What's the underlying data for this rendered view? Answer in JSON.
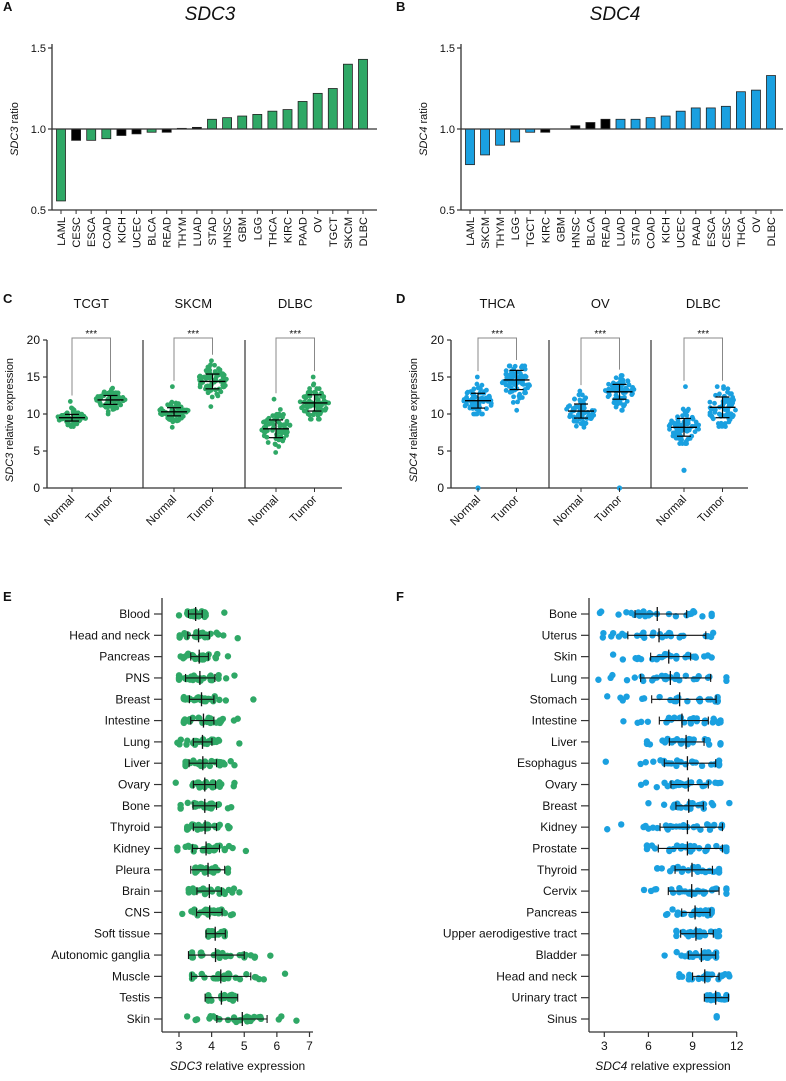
{
  "colors": {
    "sdc3": "#2fa866",
    "sdc4": "#1aa0e0",
    "nonsignificant": "#000000",
    "axis": "#333333",
    "bracket": "#888888"
  },
  "chart_data": [
    {
      "panel": "A",
      "type": "bar",
      "title": "SDC3",
      "ylabel_gene": "SDC3",
      "ylabel_suffix": " ratio",
      "ylim": [
        0.5,
        1.5
      ],
      "yticks": [
        "1.5",
        "1.0",
        "0.5"
      ],
      "baseline": 1.0,
      "categories": [
        "LAML",
        "CESC",
        "ESCA",
        "COAD",
        "KICH",
        "UCEC",
        "BLCA",
        "READ",
        "THYM",
        "LUAD",
        "STAD",
        "HNSC",
        "GBM",
        "LGG",
        "THCA",
        "KIRC",
        "PAAD",
        "OV",
        "TGCT",
        "SKCM",
        "DLBC"
      ],
      "values": [
        0.556,
        0.93,
        0.93,
        0.94,
        0.96,
        0.97,
        0.98,
        0.98,
        1.004,
        1.01,
        1.06,
        1.07,
        1.08,
        1.09,
        1.11,
        1.12,
        1.17,
        1.22,
        1.25,
        1.4,
        1.43
      ],
      "significant": [
        true,
        false,
        true,
        true,
        false,
        false,
        true,
        false,
        false,
        false,
        true,
        true,
        true,
        true,
        true,
        true,
        true,
        true,
        true,
        true,
        true
      ]
    },
    {
      "panel": "B",
      "type": "bar",
      "title": "SDC4",
      "ylabel_gene": "SDC4",
      "ylabel_suffix": " ratio",
      "ylim": [
        0.5,
        1.5
      ],
      "yticks": [
        "1.5",
        "1.0",
        "0.5"
      ],
      "baseline": 1.0,
      "categories": [
        "LAML",
        "SKCM",
        "THYM",
        "LGG",
        "TGCT",
        "KIRC",
        "GBM",
        "HNSC",
        "BLCA",
        "READ",
        "LUAD",
        "STAD",
        "COAD",
        "KICH",
        "UCEC",
        "PAAD",
        "ESCA",
        "CESC",
        "THCA",
        "OV",
        "DLBC"
      ],
      "values": [
        0.78,
        0.84,
        0.9,
        0.92,
        0.98,
        0.98,
        1.0,
        1.02,
        1.04,
        1.06,
        1.06,
        1.06,
        1.07,
        1.08,
        1.11,
        1.13,
        1.13,
        1.14,
        1.23,
        1.24,
        1.33
      ],
      "significant": [
        true,
        true,
        true,
        true,
        true,
        false,
        false,
        false,
        false,
        false,
        true,
        true,
        true,
        true,
        true,
        true,
        true,
        true,
        true,
        true,
        true
      ]
    },
    {
      "panel": "C",
      "type": "scatter",
      "ylabel_gene": "SDC3",
      "ylabel_suffix": " relative expression",
      "ylim": [
        0,
        20
      ],
      "yticks": [
        "20",
        "15",
        "10",
        "5",
        "0"
      ],
      "groups": [
        {
          "title": "TCGT",
          "significance": "***",
          "normal": {
            "label": "Normal",
            "mean": 9.5,
            "err": [
              9.05,
              9.95
            ],
            "min": 8.3,
            "max": 11.7,
            "outliers": []
          },
          "tumor": {
            "label": "Tumor",
            "mean": 11.9,
            "err": [
              11.3,
              12.5
            ],
            "min": 10.0,
            "max": 13.5,
            "outliers": []
          }
        },
        {
          "title": "SKCM",
          "significance": "***",
          "normal": {
            "label": "Normal",
            "mean": 10.3,
            "err": [
              9.75,
              10.85
            ],
            "min": 8.2,
            "max": 13.7,
            "outliers": []
          },
          "tumor": {
            "label": "Tumor",
            "mean": 14.4,
            "err": [
              13.4,
              15.4
            ],
            "min": 11.0,
            "max": 17.2,
            "outliers": []
          }
        },
        {
          "title": "DLBC",
          "significance": "***",
          "normal": {
            "label": "Normal",
            "mean": 8.0,
            "err": [
              6.8,
              9.2
            ],
            "min": 4.8,
            "max": 12.0,
            "outliers": []
          },
          "tumor": {
            "label": "Tumor",
            "mean": 11.5,
            "err": [
              10.4,
              12.6
            ],
            "min": 9.3,
            "max": 15.0,
            "outliers": []
          }
        }
      ]
    },
    {
      "panel": "D",
      "type": "scatter",
      "ylabel_gene": "SDC4",
      "ylabel_suffix": " relative expression",
      "ylim": [
        0,
        20
      ],
      "yticks": [
        "20",
        "15",
        "10",
        "5",
        "0"
      ],
      "groups": [
        {
          "title": "THCA",
          "significance": "***",
          "normal": {
            "label": "Normal",
            "mean": 11.8,
            "err": [
              10.8,
              12.8
            ],
            "min": 10.0,
            "max": 15.0,
            "outliers": [
              0
            ]
          },
          "tumor": {
            "label": "Tumor",
            "mean": 14.6,
            "err": [
              13.3,
              15.9
            ],
            "min": 10.5,
            "max": 16.5,
            "outliers": []
          }
        },
        {
          "title": "OV",
          "significance": "***",
          "normal": {
            "label": "Normal",
            "mean": 10.4,
            "err": [
              9.45,
              11.35
            ],
            "min": 8.2,
            "max": 13.1,
            "outliers": []
          },
          "tumor": {
            "label": "Tumor",
            "mean": 13.0,
            "err": [
              12.0,
              14.0
            ],
            "min": 10.5,
            "max": 15.2,
            "outliers": [
              0
            ]
          }
        },
        {
          "title": "DLBC",
          "significance": "***",
          "normal": {
            "label": "Normal",
            "mean": 8.2,
            "err": [
              7.0,
              9.4
            ],
            "min": 6.0,
            "max": 13.7,
            "outliers": [
              2.4
            ]
          },
          "tumor": {
            "label": "Tumor",
            "mean": 10.9,
            "err": [
              9.5,
              12.3
            ],
            "min": 8.3,
            "max": 13.7,
            "outliers": []
          }
        }
      ]
    },
    {
      "panel": "E",
      "type": "scatter",
      "orientation": "horizontal",
      "xlabel_gene": "SDC3",
      "xlabel_suffix": " relative expression",
      "xlim": [
        2.5,
        7
      ],
      "xticks": [
        "3",
        "4",
        "5",
        "6",
        "7"
      ],
      "rows": [
        {
          "label": "Blood",
          "mean": 3.51,
          "err": [
            3.29,
            3.71
          ],
          "min": 3.0,
          "max": 4.39
        },
        {
          "label": "Head and neck",
          "mean": 3.6,
          "err": [
            3.27,
            3.93
          ],
          "min": 3.02,
          "max": 4.8
        },
        {
          "label": "Pancreas",
          "mean": 3.62,
          "err": [
            3.36,
            3.9
          ],
          "min": 3.05,
          "max": 4.5
        },
        {
          "label": "PNS",
          "mean": 3.64,
          "err": [
            3.2,
            4.1
          ],
          "min": 3.0,
          "max": 4.7
        },
        {
          "label": "Breast",
          "mean": 3.69,
          "err": [
            3.32,
            4.07
          ],
          "min": 3.15,
          "max": 5.28
        },
        {
          "label": "Intestine",
          "mean": 3.75,
          "err": [
            3.36,
            4.07
          ],
          "min": 3.15,
          "max": 4.8
        },
        {
          "label": "Lung",
          "mean": 3.72,
          "err": [
            3.44,
            4.01
          ],
          "min": 2.95,
          "max": 4.85
        },
        {
          "label": "Liver",
          "mean": 3.73,
          "err": [
            3.31,
            4.15
          ],
          "min": 3.2,
          "max": 4.7
        },
        {
          "label": "Ovary",
          "mean": 3.79,
          "err": [
            3.44,
            4.12
          ],
          "min": 2.9,
          "max": 4.7
        },
        {
          "label": "Bone",
          "mean": 3.79,
          "err": [
            3.43,
            4.15
          ],
          "min": 3.05,
          "max": 4.6
        },
        {
          "label": "Thyroid",
          "mean": 3.8,
          "err": [
            3.44,
            4.15
          ],
          "min": 3.25,
          "max": 4.55
        },
        {
          "label": "Kidney",
          "mean": 3.83,
          "err": [
            3.41,
            4.24
          ],
          "min": 2.95,
          "max": 5.05
        },
        {
          "label": "Pleura",
          "mean": 3.89,
          "err": [
            3.36,
            4.4
          ],
          "min": 3.5,
          "max": 4.5
        },
        {
          "label": "Brain",
          "mean": 3.93,
          "err": [
            3.55,
            4.3
          ],
          "min": 3.3,
          "max": 4.85
        },
        {
          "label": "CNS",
          "mean": 3.94,
          "err": [
            3.54,
            4.32
          ],
          "min": 3.1,
          "max": 4.65
        },
        {
          "label": "Soft tissue",
          "mean": 4.11,
          "err": [
            3.83,
            4.42
          ],
          "min": 3.9,
          "max": 4.4
        },
        {
          "label": "Autonomic ganglia",
          "mean": 4.12,
          "err": [
            3.29,
            5.0
          ],
          "min": 3.4,
          "max": 5.8
        },
        {
          "label": "Muscle",
          "mean": 4.28,
          "err": [
            3.38,
            5.2
          ],
          "min": 3.4,
          "max": 6.25
        },
        {
          "label": "Testis",
          "mean": 4.3,
          "err": [
            3.8,
            4.8
          ],
          "min": 3.9,
          "max": 4.7
        },
        {
          "label": "Skin",
          "mean": 4.94,
          "err": [
            4.16,
            5.7
          ],
          "min": 3.25,
          "max": 6.6
        }
      ]
    },
    {
      "panel": "F",
      "type": "scatter",
      "orientation": "horizontal",
      "xlabel_gene": "SDC4",
      "xlabel_suffix": " relative expression",
      "xlim": [
        2,
        12
      ],
      "xticks": [
        "3",
        "6",
        "9",
        "12"
      ],
      "rows": [
        {
          "label": "Bone",
          "mean": 6.6,
          "err": [
            5.09,
            8.6
          ],
          "min": 2.7,
          "max": 10.3
        },
        {
          "label": "Uterus",
          "mean": 6.72,
          "err": [
            4.6,
            9.9
          ],
          "min": 2.9,
          "max": 10.4
        },
        {
          "label": "Skin",
          "mean": 7.38,
          "err": [
            6.15,
            8.87
          ],
          "min": 3.6,
          "max": 10.3
        },
        {
          "label": "Lung",
          "mean": 7.49,
          "err": [
            5.47,
            10.23
          ],
          "min": 2.6,
          "max": 11.3
        },
        {
          "label": "Stomach",
          "mean": 8.12,
          "err": [
            6.22,
            10.6
          ],
          "min": 3.2,
          "max": 10.7
        },
        {
          "label": "Intestine",
          "mean": 8.28,
          "err": [
            6.74,
            10.07
          ],
          "min": 4.3,
          "max": 10.9
        },
        {
          "label": "Liver",
          "mean": 8.56,
          "err": [
            7.42,
            9.78
          ],
          "min": 5.9,
          "max": 10.9
        },
        {
          "label": "Esophagus",
          "mean": 8.65,
          "err": [
            7.08,
            10.57
          ],
          "min": 3.1,
          "max": 10.8
        },
        {
          "label": "Ovary",
          "mean": 8.71,
          "err": [
            7.53,
            10.07
          ],
          "min": 5.5,
          "max": 10.9
        },
        {
          "label": "Breast",
          "mean": 8.74,
          "err": [
            7.87,
            9.73
          ],
          "min": 6.0,
          "max": 11.5
        },
        {
          "label": "Kidney",
          "mean": 8.65,
          "err": [
            6.79,
            11.03
          ],
          "min": 3.2,
          "max": 11.0
        },
        {
          "label": "Prostate",
          "mean": 8.65,
          "err": [
            6.67,
            11.03
          ],
          "min": 5.9,
          "max": 11.3
        },
        {
          "label": "Thyroid",
          "mean": 8.96,
          "err": [
            7.81,
            10.35
          ],
          "min": 6.6,
          "max": 10.8
        },
        {
          "label": "Cervix",
          "mean": 8.94,
          "err": [
            7.35,
            10.8
          ],
          "min": 5.7,
          "max": 11.3
        },
        {
          "label": "Pancreas",
          "mean": 9.17,
          "err": [
            8.26,
            10.19
          ],
          "min": 7.2,
          "max": 10.3
        },
        {
          "label": "Upper aerodigestive tract",
          "mean": 9.23,
          "err": [
            8.19,
            10.41
          ],
          "min": 7.9,
          "max": 10.8
        },
        {
          "label": "Bladder",
          "mean": 9.6,
          "err": [
            8.71,
            10.57
          ],
          "min": 7.1,
          "max": 10.6
        },
        {
          "label": "Head and neck",
          "mean": 9.83,
          "err": [
            9.0,
            10.8
          ],
          "min": 8.1,
          "max": 11.5
        },
        {
          "label": "Urinary tract",
          "mean": 10.57,
          "err": [
            9.8,
            11.44
          ],
          "min": 10.0,
          "max": 11.3
        },
        {
          "label": "Sinus",
          "mean": 10.64,
          "err": [
            10.64,
            10.64
          ],
          "min": 10.64,
          "max": 10.64
        }
      ]
    }
  ]
}
